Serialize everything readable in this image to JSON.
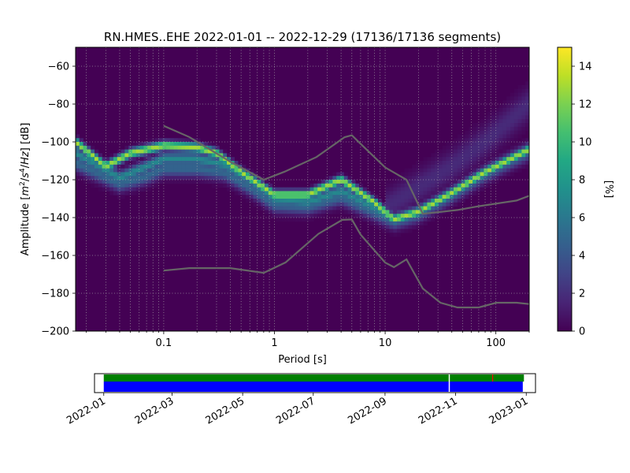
{
  "chart_data": [
    {
      "type": "heatmap",
      "title": "RN.HMES..EHE   2022-01-01 -- 2022-12-29  (17136/17136 segments)",
      "xlabel": "Period [s]",
      "ylabel_parts": [
        "Amplitude [",
        "m",
        "2",
        "/",
        "s",
        "4",
        "/",
        "Hz",
        "] [dB]"
      ],
      "xscale": "log",
      "xlim": [
        0.016,
        200
      ],
      "ylim": [
        -200,
        -50
      ],
      "xticks": [
        {
          "value": 0.1,
          "label": "0.1"
        },
        {
          "value": 1,
          "label": "1"
        },
        {
          "value": 10,
          "label": "10"
        },
        {
          "value": 100,
          "label": "100"
        }
      ],
      "yticks": [
        {
          "value": -60,
          "label": "−60"
        },
        {
          "value": -80,
          "label": "−80"
        },
        {
          "value": -100,
          "label": "−100"
        },
        {
          "value": -120,
          "label": "−120"
        },
        {
          "value": -140,
          "label": "−140"
        },
        {
          "value": -160,
          "label": "−160"
        },
        {
          "value": -180,
          "label": "−180"
        },
        {
          "value": -200,
          "label": "−200"
        }
      ],
      "grid": true,
      "colormap": "viridis",
      "colorbar": {
        "label": "[%]",
        "range": [
          0,
          15
        ],
        "ticks": [
          {
            "value": 0,
            "label": "0"
          },
          {
            "value": 2,
            "label": "2"
          },
          {
            "value": 4,
            "label": "4"
          },
          {
            "value": 6,
            "label": "6"
          },
          {
            "value": 8,
            "label": "8"
          },
          {
            "value": 10,
            "label": "10"
          },
          {
            "value": 12,
            "label": "12"
          },
          {
            "value": 14,
            "label": "14"
          }
        ]
      },
      "density_bands": [
        {
          "name": "upper",
          "peak": 13,
          "width_db": 1.6,
          "points": [
            [
              0.016,
              -100
            ],
            [
              0.03,
              -113
            ],
            [
              0.05,
              -106
            ],
            [
              0.1,
              -102
            ],
            [
              0.2,
              -103
            ],
            [
              0.3,
              -106
            ],
            [
              0.5,
              -116
            ],
            [
              1,
              -128
            ],
            [
              2,
              -128
            ],
            [
              4,
              -120
            ],
            [
              8,
              -132
            ],
            [
              12,
              -141
            ],
            [
              20,
              -137
            ],
            [
              40,
              -127
            ],
            [
              80,
              -116
            ],
            [
              200,
              -104
            ]
          ]
        },
        {
          "name": "mid",
          "peak": 7,
          "width_db": 2.2,
          "points": [
            [
              0.016,
              -106
            ],
            [
              0.04,
              -119
            ],
            [
              0.07,
              -113
            ],
            [
              0.1,
              -109
            ],
            [
              0.2,
              -109
            ],
            [
              0.35,
              -112
            ],
            [
              0.6,
              -120
            ],
            [
              1,
              -130
            ],
            [
              2,
              -132
            ],
            [
              4,
              -126
            ],
            [
              8,
              -135
            ],
            [
              12,
              -141
            ],
            [
              20,
              -137
            ],
            [
              40,
              -127
            ],
            [
              80,
              -116
            ],
            [
              200,
              -104
            ]
          ]
        },
        {
          "name": "lower",
          "peak": 5,
          "width_db": 3,
          "points": [
            [
              0.016,
              -111
            ],
            [
              0.04,
              -122
            ],
            [
              0.07,
              -118
            ],
            [
              0.1,
              -114
            ],
            [
              0.2,
              -114
            ],
            [
              0.35,
              -116
            ],
            [
              0.6,
              -124
            ],
            [
              1,
              -133
            ],
            [
              2,
              -134
            ],
            [
              4,
              -129
            ],
            [
              8,
              -137
            ],
            [
              12,
              -142
            ],
            [
              20,
              -138
            ],
            [
              40,
              -128
            ],
            [
              80,
              -117
            ],
            [
              200,
              -105
            ]
          ]
        },
        {
          "name": "diffuse",
          "peak": 1.8,
          "width_db": 6,
          "points": [
            [
              10,
              -135
            ],
            [
              20,
              -124
            ],
            [
              40,
              -113
            ],
            [
              80,
              -100
            ],
            [
              200,
              -80
            ]
          ]
        }
      ],
      "noise_model_high": [
        [
          0.1,
          -91.5
        ],
        [
          0.17,
          -97.4
        ],
        [
          0.4,
          -110.5
        ],
        [
          0.8,
          -120
        ],
        [
          1.24,
          -115.7
        ],
        [
          2.4,
          -108
        ],
        [
          4.3,
          -97.5
        ],
        [
          5,
          -96.5
        ],
        [
          6,
          -101
        ],
        [
          10,
          -113.5
        ],
        [
          15.6,
          -120
        ],
        [
          21.9,
          -138
        ],
        [
          31.6,
          -137
        ],
        [
          45,
          -136
        ],
        [
          70,
          -134
        ],
        [
          154,
          -131
        ],
        [
          200,
          -128.5
        ]
      ],
      "noise_model_low": [
        [
          0.1,
          -168
        ],
        [
          0.17,
          -166.7
        ],
        [
          0.4,
          -166.7
        ],
        [
          0.8,
          -169.2
        ],
        [
          1.26,
          -163.7
        ],
        [
          2.5,
          -148.6
        ],
        [
          4.1,
          -141.2
        ],
        [
          5,
          -141
        ],
        [
          6,
          -149
        ],
        [
          10,
          -163.8
        ],
        [
          12,
          -166.2
        ],
        [
          15.6,
          -162.1
        ],
        [
          21.9,
          -177.5
        ],
        [
          31.6,
          -185
        ],
        [
          45,
          -187.5
        ],
        [
          70,
          -187.5
        ],
        [
          101,
          -185
        ],
        [
          154,
          -185
        ],
        [
          200,
          -185.7
        ]
      ],
      "noise_model_color": "#666666"
    },
    {
      "type": "timeline",
      "x_axis": "date",
      "xlim": [
        "2021-12-24",
        "2023-01-09"
      ],
      "xticks": [
        "2022-01",
        "2022-03",
        "2022-05",
        "2022-07",
        "2022-09",
        "2022-11",
        "2023-01"
      ],
      "tick_dates": [
        "2022-01-01",
        "2022-03-01",
        "2022-05-01",
        "2022-07-01",
        "2022-09-01",
        "2022-11-01",
        "2023-01-01"
      ],
      "data_coverage": {
        "start": "2022-01-01",
        "end": "2022-12-29",
        "color": "#0000ff",
        "gaps": [
          [
            "2022-10-26",
            "2022-10-27"
          ]
        ]
      },
      "psd_coverage": {
        "start": "2022-01-01",
        "end": "2022-12-30",
        "color": "#008000",
        "gaps": [
          [
            "2022-10-26",
            "2022-10-27"
          ]
        ]
      },
      "marker": {
        "date": "2022-12-03",
        "color": "#ff0000"
      }
    }
  ]
}
